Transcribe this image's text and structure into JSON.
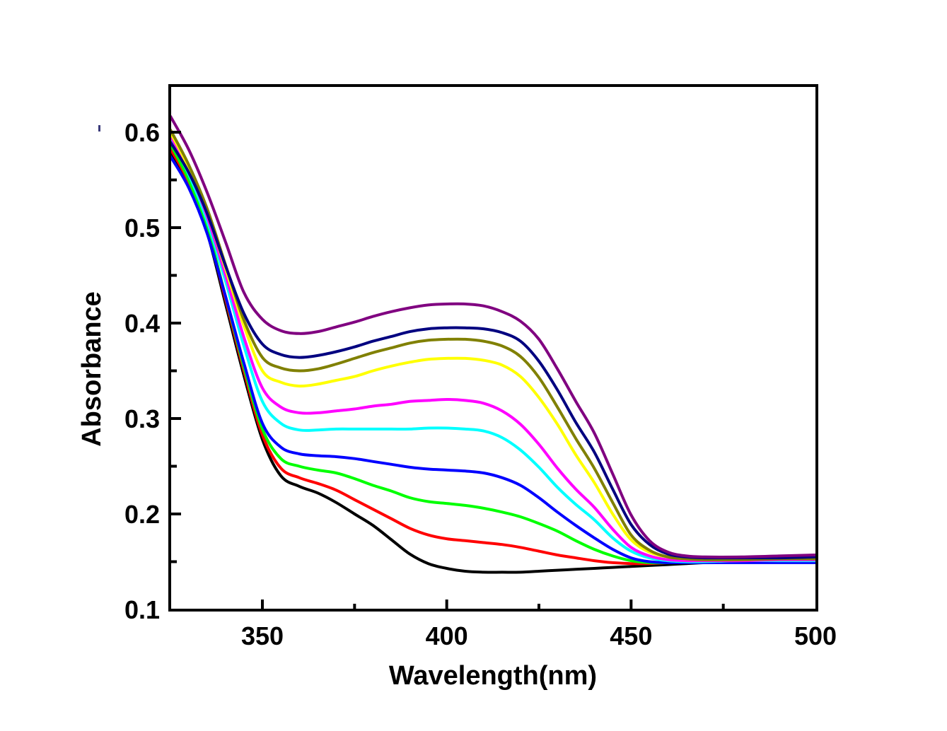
{
  "chart_data": {
    "type": "line",
    "title": "",
    "xlabel": "Wavelength(nm)",
    "ylabel": "Absorbance",
    "xlim": [
      325,
      500
    ],
    "ylim": [
      0.1,
      0.65
    ],
    "xticks": [
      350,
      400,
      450,
      500
    ],
    "xtick_labels": [
      "350",
      "400",
      "450",
      "500"
    ],
    "x_minor_ticks": [
      375,
      425,
      475
    ],
    "yticks": [
      0.1,
      0.2,
      0.3,
      0.4,
      0.5,
      0.6
    ],
    "ytick_labels": [
      "0.1",
      "0.2",
      "0.3",
      "0.4",
      "0.5",
      "0.6"
    ],
    "y_minor_ticks": [
      0.15,
      0.25,
      0.35,
      0.45,
      0.55
    ],
    "grid": false,
    "legend": "none",
    "x": [
      325,
      330,
      335,
      340,
      345,
      350,
      355,
      360,
      365,
      370,
      375,
      380,
      385,
      390,
      395,
      400,
      405,
      410,
      415,
      420,
      425,
      430,
      435,
      440,
      445,
      450,
      455,
      460,
      465,
      470,
      480,
      490,
      500
    ],
    "series": [
      {
        "name": "black",
        "color": "#000000",
        "values": [
          0.58,
          0.545,
          0.495,
          0.42,
          0.345,
          0.278,
          0.24,
          0.229,
          0.222,
          0.212,
          0.2,
          0.188,
          0.173,
          0.158,
          0.148,
          0.143,
          0.14,
          0.139,
          0.139,
          0.139,
          0.14,
          0.141,
          0.142,
          0.143,
          0.144,
          0.145,
          0.146,
          0.147,
          0.148,
          0.149,
          0.15,
          0.15,
          0.151
        ]
      },
      {
        "name": "red",
        "color": "#ff0000",
        "values": [
          0.583,
          0.548,
          0.498,
          0.425,
          0.35,
          0.283,
          0.248,
          0.238,
          0.232,
          0.225,
          0.215,
          0.205,
          0.195,
          0.185,
          0.178,
          0.174,
          0.172,
          0.17,
          0.168,
          0.165,
          0.161,
          0.157,
          0.154,
          0.151,
          0.149,
          0.148,
          0.148,
          0.149,
          0.15,
          0.15,
          0.151,
          0.152,
          0.152
        ]
      },
      {
        "name": "green",
        "color": "#00ff00",
        "values": [
          0.588,
          0.55,
          0.5,
          0.428,
          0.354,
          0.289,
          0.258,
          0.25,
          0.246,
          0.243,
          0.237,
          0.23,
          0.224,
          0.217,
          0.213,
          0.211,
          0.209,
          0.206,
          0.202,
          0.197,
          0.19,
          0.182,
          0.172,
          0.163,
          0.156,
          0.151,
          0.149,
          0.149,
          0.15,
          0.15,
          0.151,
          0.152,
          0.152
        ]
      },
      {
        "name": "blue",
        "color": "#0000ff",
        "values": [
          0.575,
          0.542,
          0.494,
          0.428,
          0.358,
          0.295,
          0.27,
          0.263,
          0.261,
          0.26,
          0.258,
          0.255,
          0.252,
          0.249,
          0.247,
          0.246,
          0.245,
          0.243,
          0.238,
          0.23,
          0.217,
          0.202,
          0.188,
          0.175,
          0.163,
          0.154,
          0.15,
          0.149,
          0.149,
          0.149,
          0.149,
          0.149,
          0.149
        ]
      },
      {
        "name": "cyan",
        "color": "#00ffff",
        "values": [
          0.593,
          0.556,
          0.507,
          0.444,
          0.376,
          0.318,
          0.295,
          0.288,
          0.288,
          0.289,
          0.289,
          0.289,
          0.289,
          0.289,
          0.29,
          0.29,
          0.289,
          0.287,
          0.28,
          0.267,
          0.249,
          0.228,
          0.21,
          0.194,
          0.175,
          0.161,
          0.154,
          0.151,
          0.15,
          0.15,
          0.151,
          0.151,
          0.151
        ]
      },
      {
        "name": "magenta",
        "color": "#ff00ff",
        "values": [
          0.597,
          0.56,
          0.512,
          0.45,
          0.385,
          0.332,
          0.312,
          0.306,
          0.306,
          0.308,
          0.31,
          0.313,
          0.315,
          0.318,
          0.319,
          0.32,
          0.319,
          0.316,
          0.308,
          0.294,
          0.273,
          0.248,
          0.226,
          0.207,
          0.184,
          0.165,
          0.156,
          0.152,
          0.151,
          0.151,
          0.151,
          0.152,
          0.152
        ]
      },
      {
        "name": "yellow",
        "color": "#ffff00",
        "values": [
          0.6,
          0.563,
          0.516,
          0.457,
          0.397,
          0.35,
          0.338,
          0.334,
          0.336,
          0.34,
          0.344,
          0.35,
          0.355,
          0.359,
          0.362,
          0.363,
          0.363,
          0.361,
          0.356,
          0.344,
          0.322,
          0.294,
          0.262,
          0.233,
          0.2,
          0.173,
          0.16,
          0.155,
          0.153,
          0.153,
          0.153,
          0.154,
          0.155
        ]
      },
      {
        "name": "olive",
        "color": "#808000",
        "values": [
          0.603,
          0.566,
          0.52,
          0.461,
          0.403,
          0.364,
          0.353,
          0.35,
          0.352,
          0.357,
          0.363,
          0.369,
          0.374,
          0.379,
          0.382,
          0.383,
          0.383,
          0.381,
          0.376,
          0.365,
          0.343,
          0.312,
          0.279,
          0.248,
          0.212,
          0.178,
          0.162,
          0.155,
          0.153,
          0.152,
          0.152,
          0.153,
          0.153
        ]
      },
      {
        "name": "navy",
        "color": "#000080",
        "values": [
          0.59,
          0.558,
          0.515,
          0.46,
          0.41,
          0.378,
          0.367,
          0.364,
          0.366,
          0.37,
          0.375,
          0.381,
          0.386,
          0.391,
          0.394,
          0.395,
          0.395,
          0.394,
          0.39,
          0.381,
          0.36,
          0.33,
          0.296,
          0.265,
          0.226,
          0.189,
          0.168,
          0.158,
          0.155,
          0.154,
          0.154,
          0.154,
          0.155
        ]
      },
      {
        "name": "purple",
        "color": "#800080",
        "values": [
          0.617,
          0.582,
          0.537,
          0.485,
          0.432,
          0.404,
          0.392,
          0.389,
          0.391,
          0.396,
          0.401,
          0.407,
          0.412,
          0.416,
          0.419,
          0.42,
          0.42,
          0.418,
          0.412,
          0.402,
          0.383,
          0.352,
          0.318,
          0.285,
          0.242,
          0.199,
          0.172,
          0.16,
          0.156,
          0.155,
          0.155,
          0.156,
          0.157
        ]
      }
    ]
  }
}
